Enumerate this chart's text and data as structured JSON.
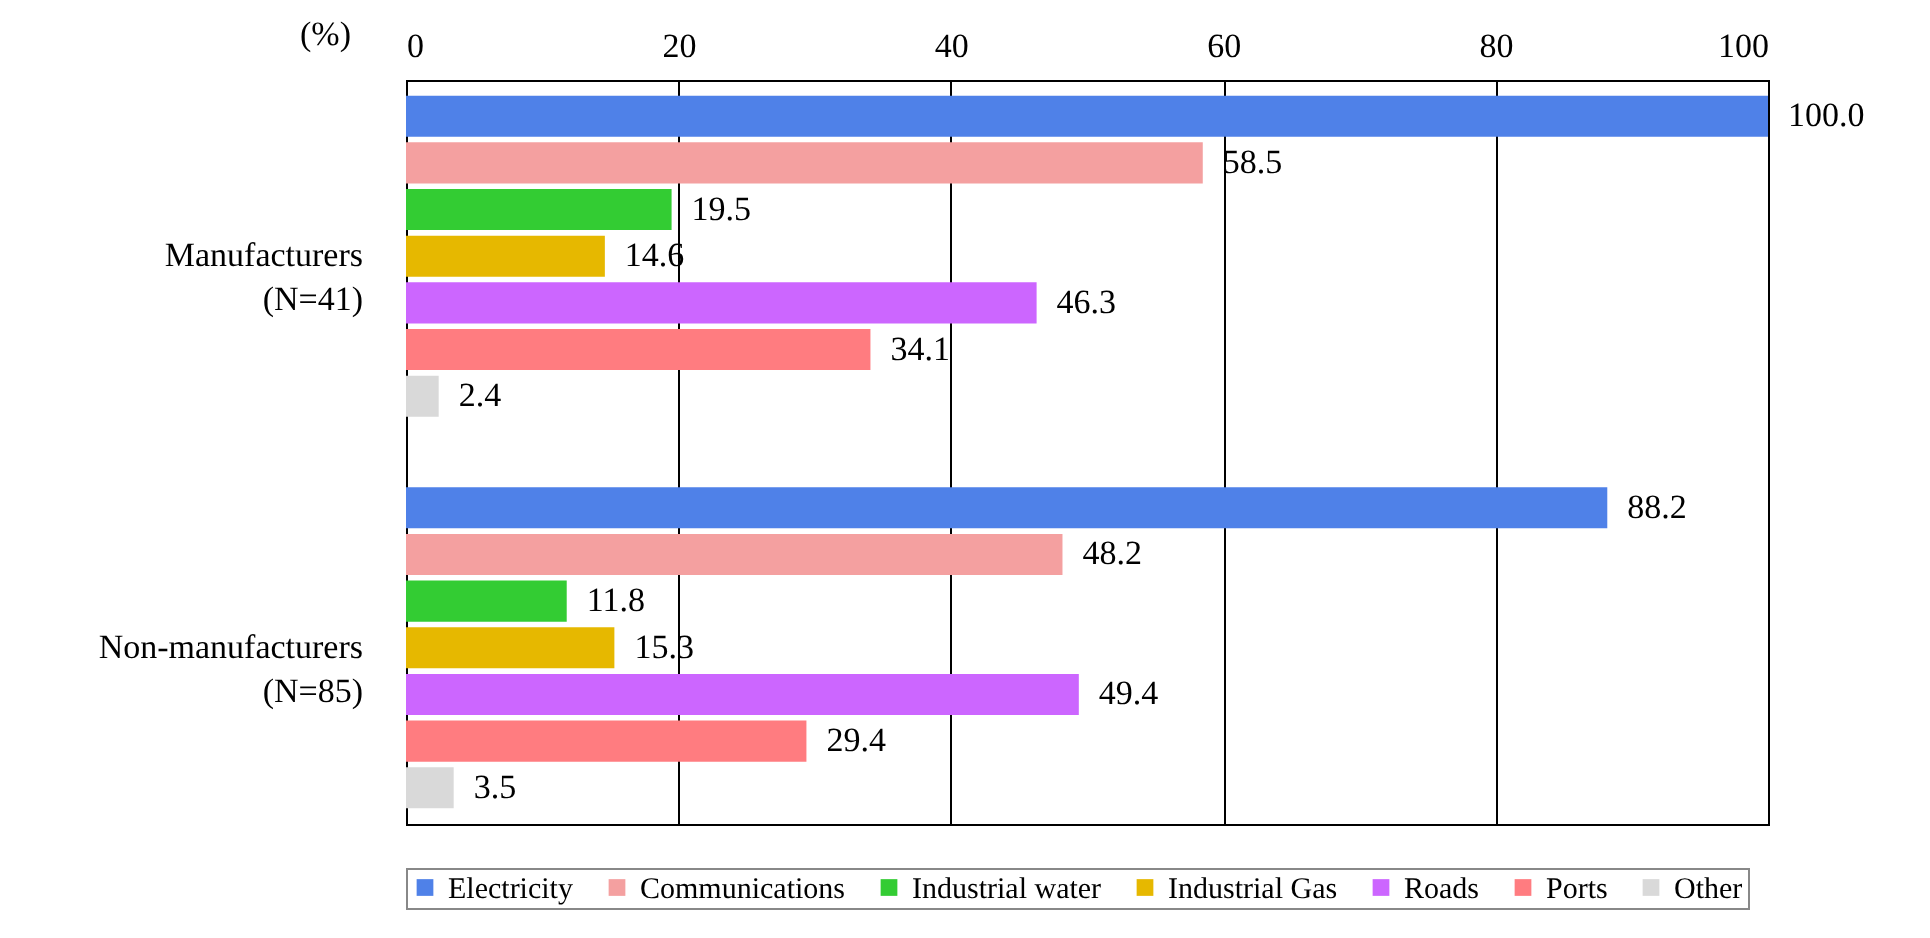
{
  "chart_data": {
    "type": "bar",
    "orientation": "horizontal",
    "xlabel": "(%)",
    "categories": [
      "Manufacturers\n(N=41)",
      "Non-manufacturers\n(N=85)"
    ],
    "series": [
      {
        "name": "Electricity",
        "color": "#4f81e8",
        "values": [
          100.0,
          88.2
        ],
        "value_labels": [
          "100.0",
          "88.2"
        ]
      },
      {
        "name": "Communications",
        "color": "#f4a0a0",
        "values": [
          58.5,
          48.2
        ],
        "value_labels": [
          "58.5",
          "48.2"
        ]
      },
      {
        "name": "Industrial water",
        "color": "#33cc33",
        "values": [
          19.5,
          11.8
        ],
        "value_labels": [
          "19.5",
          "11.8"
        ]
      },
      {
        "name": "Industrial Gas",
        "color": "#e6b800",
        "values": [
          14.6,
          15.3
        ],
        "value_labels": [
          "14.6",
          "15.3"
        ]
      },
      {
        "name": "Roads",
        "color": "#cc66ff",
        "values": [
          46.3,
          49.4
        ],
        "value_labels": [
          "46.3",
          "49.4"
        ]
      },
      {
        "name": "Ports",
        "color": "#ff7c80",
        "values": [
          34.1,
          29.4
        ],
        "value_labels": [
          "34.1",
          "29.4"
        ]
      },
      {
        "name": "Other",
        "color": "#d9d9d9",
        "values": [
          2.4,
          3.5
        ],
        "value_labels": [
          "2.4",
          "3.5"
        ]
      }
    ],
    "xlim": [
      0,
      100
    ],
    "xticks": [
      0,
      20,
      40,
      60,
      80,
      100
    ],
    "grid": "x",
    "legend": "bottom"
  }
}
